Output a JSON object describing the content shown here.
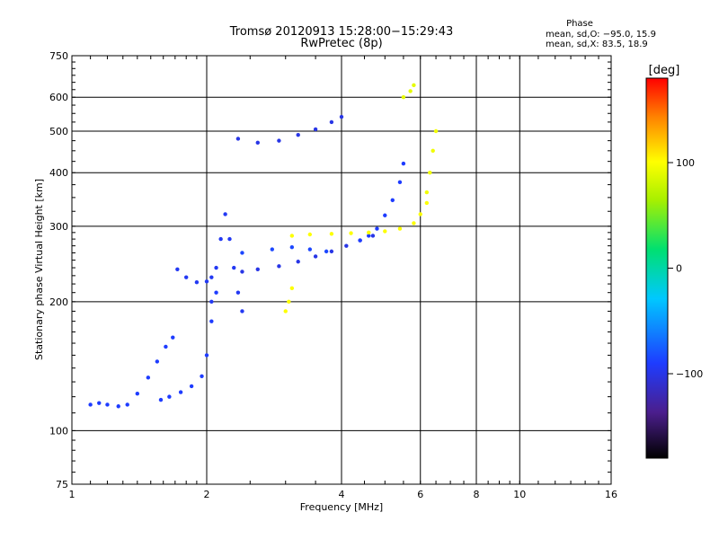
{
  "header": {
    "title_line1": "Tromsø 20120913 15:28:00−15:29:43",
    "title_line2": "RwPretec (8p)",
    "phase_title": "Phase",
    "phase_stats_o": "mean, sd,O: −95.0, 15.9",
    "phase_stats_x": "mean, sd,X:  83.5, 18.9"
  },
  "colorbar": {
    "unit_label": "[deg]",
    "min": -180,
    "max": 180,
    "tick_labels": [
      "100",
      "0",
      "−100"
    ],
    "tick_values": [
      100,
      0,
      -100
    ]
  },
  "chart_data": {
    "type": "scatter",
    "xlabel": "Frequency [MHz]",
    "ylabel": "Stationary phase Virtual Height [km]",
    "x_scale": "log",
    "y_scale": "log",
    "xlim": [
      1,
      16
    ],
    "ylim": [
      75,
      750
    ],
    "x_ticks": [
      1,
      2,
      4,
      6,
      8,
      10,
      16
    ],
    "x_tick_labels": [
      "1",
      "2",
      "4",
      "6",
      "8",
      "10",
      "16"
    ],
    "y_ticks": [
      75,
      100,
      200,
      300,
      400,
      500,
      600,
      750
    ],
    "y_tick_labels": [
      "75",
      "100",
      "200",
      "300",
      "400",
      "500",
      "600",
      "750"
    ],
    "major_grid_x": [
      2,
      4,
      6,
      8,
      10
    ],
    "major_grid_y": [
      100,
      200,
      300,
      400,
      500,
      600
    ],
    "series": [
      {
        "phase_deg": -90,
        "x": [
          1.1,
          1.15,
          1.2,
          1.27,
          1.33,
          1.4,
          1.48,
          1.55,
          1.62,
          1.68
        ],
        "y": [
          115,
          116,
          115,
          114,
          115,
          122,
          133,
          145,
          157,
          165
        ]
      },
      {
        "phase_deg": -90,
        "x": [
          1.58,
          1.65,
          1.75,
          1.85,
          1.95,
          2.0,
          2.05,
          2.1
        ],
        "y": [
          118,
          120,
          123,
          127,
          134,
          150,
          180,
          210
        ]
      },
      {
        "phase_deg": -95,
        "x": [
          1.72,
          1.8,
          1.9,
          2.0,
          2.05
        ],
        "y": [
          238,
          228,
          222,
          223,
          228
        ]
      },
      {
        "phase_deg": -95,
        "x": [
          2.05,
          2.1,
          2.15,
          2.2,
          2.25,
          2.3,
          2.35,
          2.4
        ],
        "y": [
          200,
          240,
          280,
          320,
          280,
          240,
          210,
          190
        ]
      },
      {
        "phase_deg": -100,
        "x": [
          2.35,
          2.6,
          2.9,
          3.2,
          3.5,
          3.8,
          4.0
        ],
        "y": [
          480,
          470,
          475,
          490,
          505,
          525,
          540
        ]
      },
      {
        "phase_deg": -100,
        "x": [
          2.4,
          2.6,
          2.9,
          3.2,
          3.5,
          3.8,
          4.1,
          4.4,
          4.7
        ],
        "y": [
          235,
          238,
          242,
          248,
          255,
          262,
          270,
          278,
          285
        ]
      },
      {
        "phase_deg": -90,
        "x": [
          4.4,
          4.6,
          4.8,
          5.0,
          5.2,
          5.4,
          5.5
        ],
        "y": [
          278,
          285,
          296,
          318,
          345,
          380,
          420
        ]
      },
      {
        "phase_deg": -85,
        "x": [
          2.4,
          2.8,
          3.1,
          3.4,
          3.7
        ],
        "y": [
          260,
          265,
          268,
          265,
          262
        ]
      },
      {
        "phase_deg": 100,
        "x": [
          3.1,
          3.4,
          3.8,
          4.2,
          4.6,
          5.0,
          5.4,
          5.8,
          6.0,
          6.2
        ],
        "y": [
          285,
          287,
          288,
          289,
          290,
          292,
          296,
          305,
          320,
          340
        ]
      },
      {
        "phase_deg": 95,
        "x": [
          6.2,
          6.3,
          6.4,
          6.5
        ],
        "y": [
          360,
          400,
          450,
          500
        ]
      },
      {
        "phase_deg": 100,
        "x": [
          3.0,
          3.05,
          3.1
        ],
        "y": [
          190,
          200,
          215
        ]
      },
      {
        "phase_deg": 90,
        "x": [
          5.5,
          5.7,
          5.8
        ],
        "y": [
          600,
          620,
          640
        ]
      }
    ]
  }
}
